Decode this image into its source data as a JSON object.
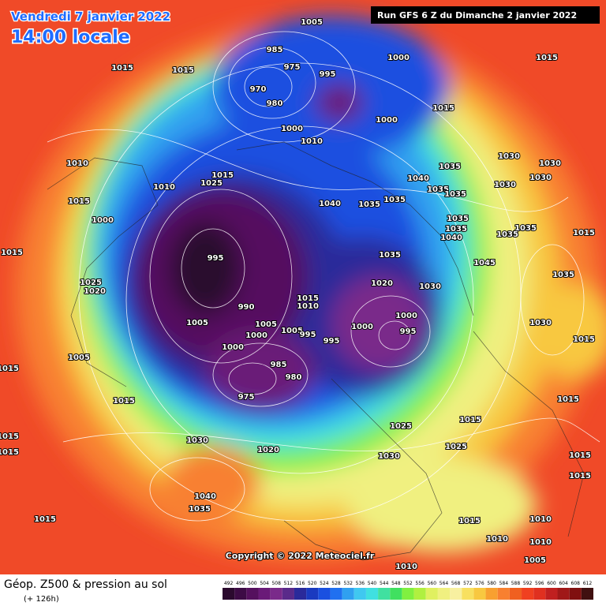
{
  "header": {
    "date": "Vendredi 7 janvier 2022",
    "time": "14:00 locale",
    "run": "Run GFS 6 Z du Dimanche 2 janvier 2022"
  },
  "copyright": "Copyright © 2022 Meteociel.fr",
  "legend": {
    "title": "Géop. Z500 & pression au sol",
    "lead": "(+ 126h)",
    "values": [
      492,
      496,
      500,
      504,
      508,
      512,
      516,
      520,
      524,
      528,
      532,
      536,
      540,
      544,
      548,
      552,
      556,
      560,
      564,
      568,
      572,
      576,
      580,
      584,
      588,
      592,
      596,
      600,
      604,
      608,
      612
    ],
    "colors": [
      "#2b0a2e",
      "#3d0b45",
      "#55105e",
      "#6a1a78",
      "#7a2a8a",
      "#5a2a8a",
      "#2a2a9a",
      "#1a3ac0",
      "#1a50e0",
      "#2070f0",
      "#30a0f0",
      "#40c8f0",
      "#40e0e0",
      "#40e0a0",
      "#40e060",
      "#80f040",
      "#b0f040",
      "#e0f060",
      "#f0f080",
      "#f8f0a0",
      "#f8e060",
      "#f8c840",
      "#f8a030",
      "#f88030",
      "#f06020",
      "#f04020",
      "#e03020",
      "#c02020",
      "#a01818",
      "#801010",
      "#401010"
    ]
  },
  "pressure_labels": [
    1005,
    985,
    975,
    970,
    980,
    995,
    1000,
    1015,
    1015,
    1015,
    1000,
    1015,
    1000,
    1010,
    1010,
    1010,
    1015,
    1025,
    1035,
    1030,
    1030,
    1030,
    1040,
    1035,
    1035,
    1030,
    1015,
    1040,
    1035,
    1035,
    1000,
    1035,
    1035,
    1040,
    1035,
    1035,
    1015,
    1015,
    995,
    1035,
    1045,
    1035,
    1025,
    1020,
    1020,
    1030,
    990,
    1015,
    1010,
    1005,
    1005,
    1005,
    995,
    995,
    1000,
    1000,
    995,
    1000,
    1000,
    1030,
    1015,
    1005,
    1015,
    985,
    980,
    975,
    1015,
    1025,
    1015,
    1015,
    1015,
    1030,
    1015,
    1020,
    1025,
    1030,
    1015,
    1015,
    1040,
    1035,
    1015,
    1015,
    1010,
    1010,
    1010,
    1005,
    1010
  ]
}
